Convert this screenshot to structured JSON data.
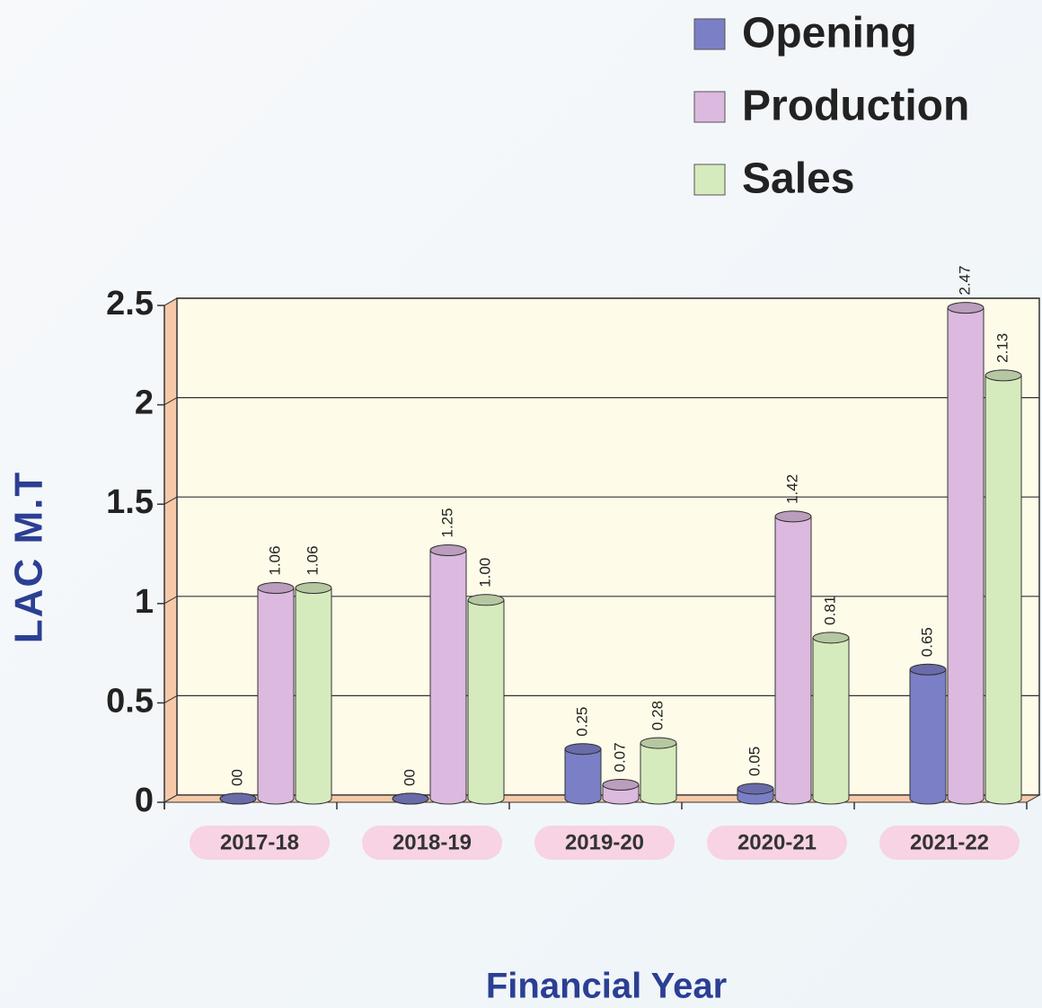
{
  "chart_data": {
    "type": "bar",
    "categories": [
      "2017-18",
      "2018-19",
      "2019-20",
      "2020-21",
      "2021-22"
    ],
    "series": [
      {
        "name": "Opening",
        "color": "#7b7fc6",
        "values": [
          0,
          0,
          0.25,
          0.05,
          0.65
        ],
        "value_labels": [
          "00",
          "00",
          "0.25",
          "0.05",
          "0.65"
        ]
      },
      {
        "name": "Production",
        "color": "#dcb9df",
        "values": [
          1.06,
          1.25,
          0.07,
          1.42,
          2.47
        ],
        "value_labels": [
          "1.06",
          "1.25",
          "0.07",
          "1.42",
          "2.47"
        ]
      },
      {
        "name": "Sales",
        "color": "#d6ebbd",
        "values": [
          1.06,
          1.0,
          0.28,
          0.81,
          2.13
        ],
        "value_labels": [
          "1.06",
          "1.00",
          "0.28",
          "0.81",
          "2.13"
        ]
      }
    ],
    "y_label": "LAC M.T",
    "x_label": "Financial Year",
    "ylim": [
      0,
      2.5
    ],
    "yticks": [
      0,
      0.5,
      1,
      1.5,
      2,
      2.5
    ],
    "grid": true
  }
}
